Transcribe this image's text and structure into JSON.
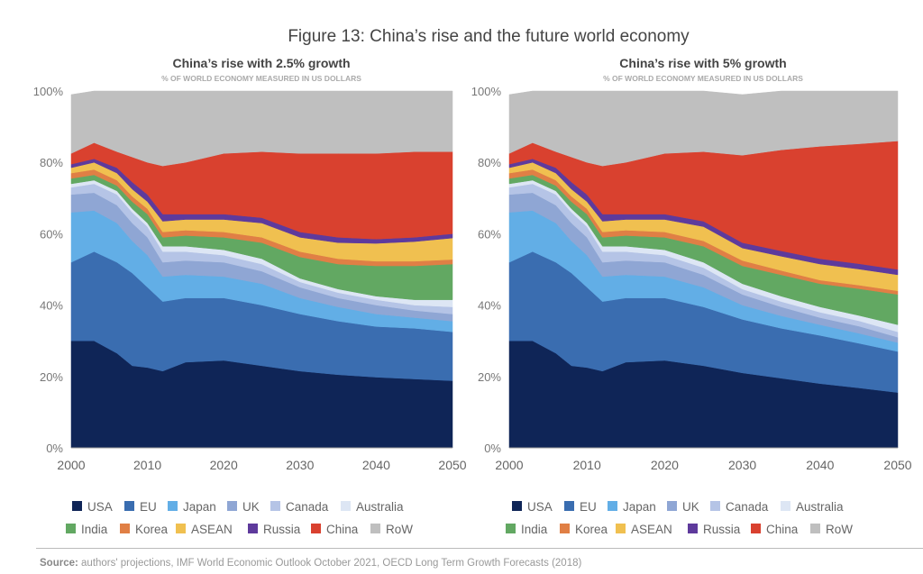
{
  "figure_title": "Figure 13: China’s rise and the future world economy",
  "source_label": "Source:",
  "source_text": "authors' projections, IMF World Economic Outlook October 2021, OECD Long Term Growth Forecasts (2018)",
  "chart_data": [
    {
      "type": "area",
      "stacked": true,
      "title": "China’s rise with 2.5% growth",
      "subtitle": "% OF WORLD ECONOMY MEASURED IN US DOLLARS",
      "xlabel": "",
      "ylabel": "",
      "xlim": [
        2000,
        2050
      ],
      "ylim": [
        0,
        100
      ],
      "xticks": [
        "2000",
        "2010",
        "2020",
        "2030",
        "2040",
        "2050"
      ],
      "yticks": [
        "0%",
        "20%",
        "40%",
        "60%",
        "80%",
        "100%"
      ],
      "legend_position": "bottom",
      "x": [
        2000,
        2003,
        2006,
        2008,
        2010,
        2012,
        2015,
        2020,
        2025,
        2030,
        2035,
        2040,
        2045,
        2050
      ],
      "series": [
        {
          "name": "USA",
          "color": "#0f2557",
          "values": [
            30,
            30,
            26.5,
            23,
            22.5,
            21.5,
            24,
            24.5,
            23,
            21.5,
            20.5,
            19.8,
            19.3,
            18.8
          ]
        },
        {
          "name": "EU",
          "color": "#3a6db0",
          "values": [
            22,
            25,
            25.5,
            26,
            22.5,
            19.5,
            18,
            17.5,
            17,
            16,
            15,
            14.2,
            14.2,
            13.7
          ]
        },
        {
          "name": "Japan",
          "color": "#62aee6",
          "values": [
            14,
            11.5,
            11,
            9,
            9,
            7,
            6.5,
            6,
            6,
            4.5,
            4,
            3.5,
            3,
            3
          ]
        },
        {
          "name": "UK",
          "color": "#8fa6d4",
          "values": [
            5,
            5,
            5,
            5,
            5,
            4,
            4,
            4,
            3.5,
            3,
            2.5,
            2.5,
            2,
            2
          ]
        },
        {
          "name": "Canada",
          "color": "#b5c4e6",
          "values": [
            2,
            2.5,
            3,
            3,
            3,
            3,
            2.5,
            2,
            2,
            1.5,
            1.5,
            1.5,
            1.5,
            2
          ]
        },
        {
          "name": "Australia",
          "color": "#dde6f4",
          "values": [
            1,
            1,
            1,
            1,
            1,
            1.5,
            1.5,
            1.5,
            1.5,
            1,
            1,
            1,
            1.5,
            2
          ]
        },
        {
          "name": "India",
          "color": "#62a862",
          "values": [
            1.5,
            1.5,
            1.5,
            2,
            2.5,
            2.5,
            3,
            3.5,
            4.5,
            6,
            7,
            8.5,
            9.5,
            10
          ]
        },
        {
          "name": "Korea",
          "color": "#e07f45",
          "values": [
            1.5,
            1.5,
            1.5,
            1.5,
            1.5,
            1.5,
            1.5,
            1.5,
            1.5,
            1.5,
            1.5,
            1.3,
            1.3,
            1.3
          ]
        },
        {
          "name": "ASEAN",
          "color": "#f0c050",
          "values": [
            1.5,
            2,
            2,
            2,
            2,
            3,
            3,
            3.5,
            4,
            4,
            4.5,
            5,
            5.5,
            6
          ]
        },
        {
          "name": "Russia",
          "color": "#5e3a9c",
          "values": [
            1,
            1,
            1.5,
            2,
            2,
            2,
            1.5,
            1.5,
            1.5,
            1.5,
            1.5,
            1.2,
            1.2,
            1.2
          ]
        },
        {
          "name": "China",
          "color": "#d9412f",
          "values": [
            3,
            4.5,
            4.5,
            7,
            9,
            13.5,
            14.5,
            17,
            18.5,
            22,
            23.5,
            24,
            24,
            23
          ]
        },
        {
          "name": "RoW",
          "color": "#bfbfbf",
          "values": [
            16.5,
            14.5,
            17,
            18.5,
            20,
            21,
            20,
            17.5,
            17,
            17.5,
            17.5,
            17.5,
            17,
            17
          ]
        }
      ]
    },
    {
      "type": "area",
      "stacked": true,
      "title": "China’s rise with 5% growth",
      "subtitle": "% OF WORLD ECONOMY MEASURED IN US DOLLARS",
      "xlabel": "",
      "ylabel": "",
      "xlim": [
        2000,
        2050
      ],
      "ylim": [
        0,
        100
      ],
      "xticks": [
        "2000",
        "2010",
        "2020",
        "2030",
        "2040",
        "2050"
      ],
      "yticks": [
        "0%",
        "20%",
        "40%",
        "60%",
        "80%",
        "100%"
      ],
      "legend_position": "bottom",
      "x": [
        2000,
        2003,
        2006,
        2008,
        2010,
        2012,
        2015,
        2020,
        2025,
        2030,
        2035,
        2040,
        2045,
        2050
      ],
      "series": [
        {
          "name": "USA",
          "color": "#0f2557",
          "values": [
            30,
            30,
            26.5,
            23,
            22.5,
            21.5,
            24,
            24.5,
            23,
            21,
            19.5,
            18,
            16.8,
            15.5
          ]
        },
        {
          "name": "EU",
          "color": "#3a6db0",
          "values": [
            22,
            25,
            25.5,
            26,
            22.5,
            19.5,
            18,
            17.5,
            16.5,
            15,
            14,
            13.5,
            12.5,
            11.5
          ]
        },
        {
          "name": "Japan",
          "color": "#62aee6",
          "values": [
            14,
            11.5,
            11,
            9,
            9,
            7,
            6.5,
            6,
            5.5,
            4,
            3.5,
            3,
            2.8,
            2.5
          ]
        },
        {
          "name": "UK",
          "color": "#8fa6d4",
          "values": [
            5,
            5,
            5,
            5,
            5,
            4,
            4,
            4,
            3.5,
            3,
            2.5,
            2,
            2,
            1.5
          ]
        },
        {
          "name": "Canada",
          "color": "#b5c4e6",
          "values": [
            2,
            2.5,
            3,
            3,
            3,
            3,
            2.5,
            2,
            2,
            1.5,
            1.5,
            1.5,
            1.5,
            1.5
          ]
        },
        {
          "name": "Australia",
          "color": "#dde6f4",
          "values": [
            1,
            1,
            1,
            1,
            1,
            1.5,
            1.5,
            1.5,
            1.5,
            1.5,
            1.5,
            1.5,
            1.5,
            2
          ]
        },
        {
          "name": "India",
          "color": "#62a862",
          "values": [
            1.5,
            1.5,
            1.5,
            2,
            2.5,
            2.5,
            3,
            3.5,
            4.5,
            5,
            6,
            6.5,
            7.5,
            8.5
          ]
        },
        {
          "name": "Korea",
          "color": "#e07f45",
          "values": [
            1.5,
            1.5,
            1.5,
            1.5,
            1.5,
            1.5,
            1.5,
            1.5,
            1.5,
            1.5,
            1.2,
            1,
            1,
            1
          ]
        },
        {
          "name": "ASEAN",
          "color": "#f0c050",
          "values": [
            1.5,
            2,
            2,
            2,
            2,
            3,
            3,
            3.5,
            4,
            3.5,
            4,
            4.5,
            4.5,
            4.5
          ]
        },
        {
          "name": "Russia",
          "color": "#5e3a9c",
          "values": [
            1,
            1,
            1.5,
            2,
            2,
            2,
            1.5,
            1.5,
            1.5,
            1.5,
            1.5,
            1.5,
            1.5,
            1.5
          ]
        },
        {
          "name": "China",
          "color": "#d9412f",
          "values": [
            3,
            4.5,
            4.5,
            7,
            9,
            13.5,
            14.5,
            17,
            19.5,
            24.5,
            28.3,
            31.5,
            33.6,
            36
          ]
        },
        {
          "name": "RoW",
          "color": "#bfbfbf",
          "values": [
            16.5,
            14.5,
            17,
            18.5,
            20,
            21,
            20,
            17.5,
            17,
            17,
            16.5,
            15.5,
            14.8,
            14
          ]
        }
      ]
    }
  ]
}
